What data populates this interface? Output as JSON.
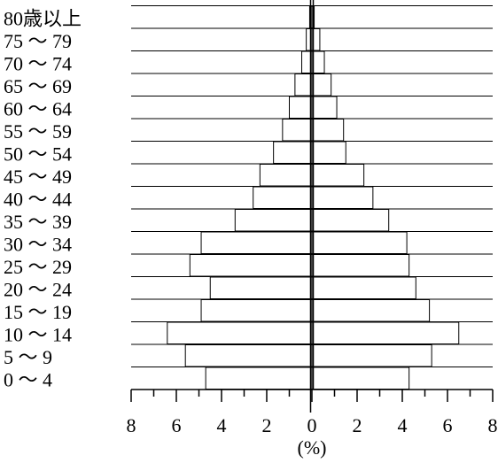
{
  "chart_data": {
    "type": "bar",
    "orientation": "population-pyramid",
    "categories": [
      "0 ～ 4",
      "5 ～ 9",
      "10 ～ 14",
      "15 ～ 19",
      "20 ～ 24",
      "25 ～ 29",
      "30 ～ 34",
      "35 ～ 39",
      "40 ～ 44",
      "45 ～ 49",
      "50 ～ 54",
      "55 ～ 59",
      "60 ～ 64",
      "65 ～ 69",
      "70 ～ 74",
      "75 ～ 79",
      "80歳以上"
    ],
    "series": [
      {
        "side": "left",
        "values": [
          4.7,
          5.6,
          6.4,
          4.9,
          4.5,
          5.4,
          4.9,
          3.4,
          2.6,
          2.3,
          1.7,
          1.3,
          1.0,
          0.75,
          0.45,
          0.25,
          0.1
        ]
      },
      {
        "side": "right",
        "values": [
          4.3,
          5.3,
          6.5,
          5.2,
          4.6,
          4.3,
          4.2,
          3.4,
          2.7,
          2.3,
          1.5,
          1.4,
          1.1,
          0.85,
          0.55,
          0.35,
          0.1
        ]
      }
    ],
    "xticks": [
      "8",
      "6",
      "4",
      "2",
      "0",
      "2",
      "4",
      "6",
      "8"
    ],
    "xlim": [
      -8,
      8
    ],
    "xlabel": "(%)",
    "grid": "horizontal lines between age groups",
    "colors": {
      "bar_fill": "#ffffff",
      "stroke": "#000000"
    }
  }
}
